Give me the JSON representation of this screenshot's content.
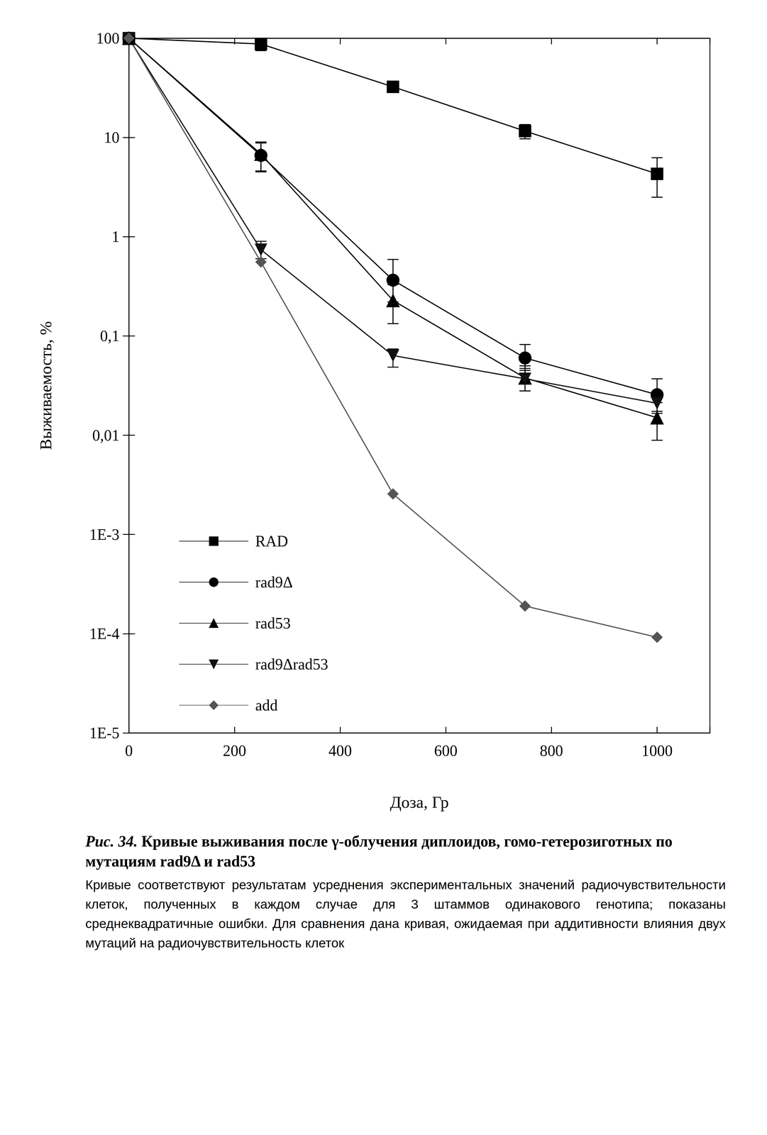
{
  "chart_data": {
    "type": "line",
    "x_label": "Доза, Гр",
    "y_label": "Выживаемость, %",
    "x": [
      0,
      250,
      500,
      750,
      1000
    ],
    "xlim": [
      0,
      1100
    ],
    "xticks": [
      0,
      200,
      400,
      600,
      800,
      1000
    ],
    "ylim": [
      1e-05,
      100
    ],
    "yticks": [
      {
        "value": 1e-05,
        "label": "1E-5"
      },
      {
        "value": 0.0001,
        "label": "1E-4"
      },
      {
        "value": 0.001,
        "label": "1E-3"
      },
      {
        "value": 0.01,
        "label": "0,01"
      },
      {
        "value": 0.1,
        "label": "0,1"
      },
      1,
      10,
      100
    ],
    "log": "y",
    "grid": false,
    "legend": "lower left",
    "series": [
      {
        "name": "RAD",
        "color": "#000000",
        "marker": "square",
        "values": [
          100,
          87.5,
          32.4,
          11.6,
          4.3
        ],
        "error_low": [
          null,
          75,
          29.3,
          9.7,
          2.5
        ],
        "error_high": [
          null,
          95,
          34.7,
          13.5,
          6.25
        ]
      },
      {
        "name": "rad9Δ",
        "color": "#000000",
        "marker": "circle",
        "values": [
          100,
          6.6,
          0.365,
          0.06,
          0.0256
        ],
        "error_low": [
          null,
          4.5,
          0.22,
          0.045,
          0.0174
        ],
        "error_high": [
          null,
          9.0,
          0.59,
          0.082,
          0.037
        ]
      },
      {
        "name": "rad53",
        "color": "#000000",
        "marker": "triangle",
        "values": [
          100,
          6.8,
          0.228,
          0.0378,
          0.015
        ],
        "error_low": [
          null,
          4.6,
          0.133,
          0.0279,
          0.0089
        ],
        "error_high": [
          null,
          8.8,
          0.33,
          0.05,
          0.0213
        ]
      },
      {
        "name": "rad9Δrad53",
        "color": "#111111",
        "marker": "triangle-down",
        "values": [
          100,
          0.74,
          0.0635,
          0.037,
          0.021
        ],
        "error_low": [
          null,
          0.6,
          0.0485,
          0.028,
          0.0166
        ],
        "error_high": [
          null,
          0.9,
          0.074,
          0.047,
          0.027
        ]
      },
      {
        "name": "add",
        "color": "#555555",
        "marker": "diamond",
        "values": [
          100,
          0.556,
          0.00256,
          0.00019,
          9.2e-05
        ],
        "error_low": [
          null,
          null,
          null,
          null,
          null
        ],
        "error_high": [
          null,
          null,
          null,
          null,
          null
        ]
      }
    ],
    "caption_label": "Рис. 34.",
    "caption_title": "Кривые выживания после γ-облучения диплоидов, гомо-гетерозиготных по мутациям rad9Δ и rad53",
    "caption_text": "Кривые соответствуют результатам усреднения экспериментальных значений радиочувствительности клеток, полученных в каждом случае для 3 штаммов одинакового генотипа; показаны среднеквадратичные ошибки. Для сравнения дана кривая, ожидаемая при аддитивности влияния двух мутаций на радиочувствительность клеток"
  }
}
